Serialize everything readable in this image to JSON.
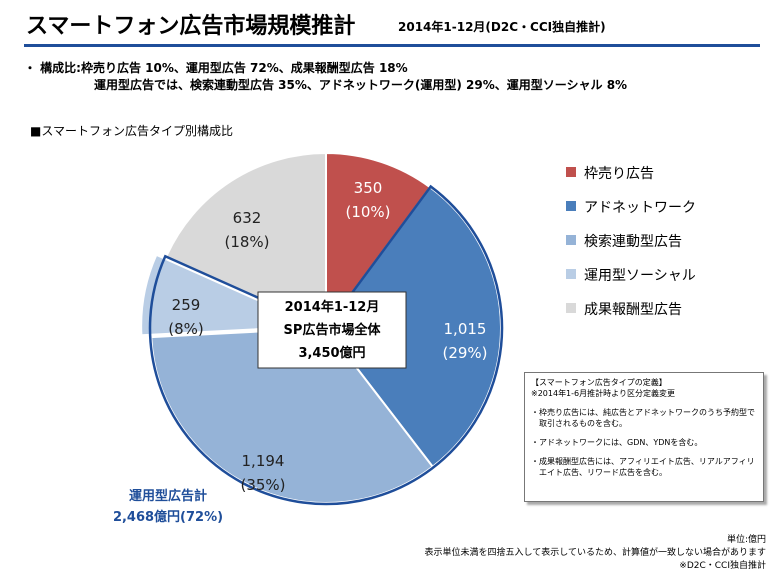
{
  "header": {
    "title": "スマートフォン広告市場規模推計",
    "subtitle": "2014年1-12月(D2C・CCI独自推計)"
  },
  "summary": {
    "line1": "・ 構成比:枠売り広告 10%、運用型広告 72%、成果報酬型広告 18%",
    "line2": "運用型広告では、検索連動型広告 35%、アドネットワーク(運用型) 29%、運用型ソーシャル 8%"
  },
  "chart_title": "■スマートフォン広告タイプ別構成比",
  "colors": {
    "title_line": "#1f4e9a",
    "slice_frame": "#c0504d",
    "slice_adnetwork": "#4a7ebb",
    "slice_search": "#95b3d7",
    "slice_social": "#b9cde5",
    "slice_affiliate": "#d9d9d9",
    "operated_label": "#1f4e9a"
  },
  "chart_data": {
    "type": "pie",
    "unit": "億円",
    "slices": [
      {
        "label": "枠売り広告",
        "value": 350,
        "value_label": "350",
        "pct_label": "(10%)",
        "color": "#c0504d"
      },
      {
        "label": "アドネットワーク",
        "value": 1015,
        "value_label": "1,015",
        "pct_label": "(29%)",
        "color": "#4a7ebb"
      },
      {
        "label": "検索連動型広告",
        "value": 1194,
        "value_label": "1,194",
        "pct_label": "(35%)",
        "color": "#95b3d7"
      },
      {
        "label": "運用型ソーシャル",
        "value": 259,
        "value_label": "259",
        "pct_label": "(8%)",
        "color": "#b9cde5"
      },
      {
        "label": "成果報酬型広告",
        "value": 632,
        "value_label": "632",
        "pct_label": "(18%)",
        "color": "#d9d9d9"
      }
    ],
    "center_box": {
      "line1": "2014年1-12月",
      "line2": "SP広告市場全体",
      "line3": "3,450億円"
    },
    "group_annotation": {
      "line1": "運用型広告計",
      "line2": "2,468億円(72%)"
    },
    "legend_position": "right"
  },
  "definition_box": {
    "heading": "【スマートフォン広告タイプの定義】",
    "note": "※2014年1-6月推計時より区分定義変更",
    "item1": "・枠売り広告には、純広告とアドネットワークのうち予約型で取引されるものを含む。",
    "item2": "・アドネットワークには、GDN、YDNを含む。",
    "item3": "・成果報酬型広告には、アフィリエイト広告、リアルアフィリエイト広告、リワード広告を含む。"
  },
  "footer": {
    "unit": "単位:億円",
    "rounding_note": "表示単位未満を四捨五入して表示しているため、計算値が一致しない場合があります",
    "source": "※D2C・CCI独自推計"
  }
}
